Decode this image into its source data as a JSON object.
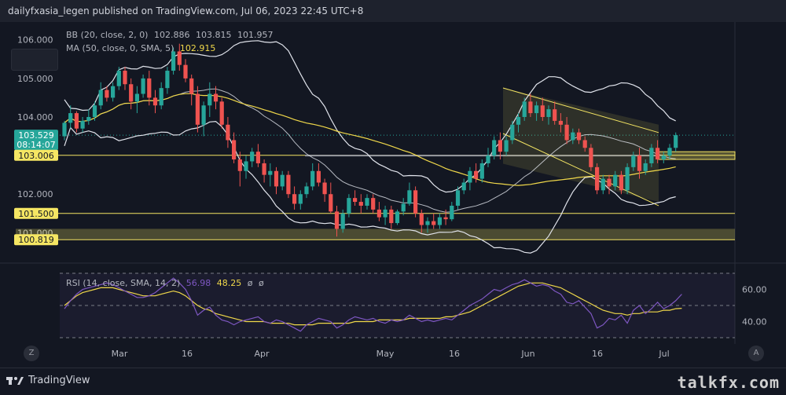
{
  "header": {
    "published_text": "dailyfxasia_legen published on TradingView.com, Jul 06, 2023 22:45 UTC+8"
  },
  "legend": {
    "bb_label": "BB (20, close, 2, 0)",
    "bb_values": [
      "102.886",
      "103.815",
      "101.957"
    ],
    "ma_label": "MA (50, close, 0, SMA, 5)",
    "ma_value": "102.915",
    "rsi_label": "RSI (14, close, SMA, 14, 2)",
    "rsi_values": [
      "56.98",
      "48.25",
      "ø",
      "ø"
    ]
  },
  "price_labels": {
    "current": "103.529",
    "countdown": "08:14:07",
    "level_103": "103.006",
    "level_1015": "101.500",
    "level_1008": "100.819"
  },
  "footer": {
    "brand": "TradingView",
    "watermark": "talkfx.com",
    "left_button": "Z",
    "right_button": "A"
  },
  "colors": {
    "up": "#26a69a",
    "down": "#ef5350",
    "bb": "#e0e3eb",
    "ma": "#f0d84a",
    "level": "#f5e663",
    "rsi": "#7e57c2",
    "rsi_ma": "#f0d84a"
  },
  "chart_data": [
    {
      "type": "candlestick",
      "title": "",
      "ylim": [
        100.6,
        106.3
      ],
      "y_ticks": [
        "106.000",
        "105.000",
        "104.000",
        "102.000",
        "101.000"
      ],
      "x_ticks": [
        "Mar",
        "16",
        "Apr",
        "May",
        "16",
        "Jun",
        "16",
        "Jul"
      ],
      "horizontal_levels": [
        103.006,
        101.5,
        100.819
      ],
      "highlight_zone": [
        100.819,
        101.1
      ],
      "candles": [
        [
          103.5,
          103.9,
          103.4,
          103.85
        ],
        [
          103.85,
          104.3,
          103.7,
          104.1
        ],
        [
          104.1,
          104.15,
          103.6,
          103.7
        ],
        [
          103.7,
          104.0,
          103.6,
          103.9
        ],
        [
          103.9,
          104.2,
          103.8,
          104.0
        ],
        [
          104.0,
          104.4,
          103.9,
          104.3
        ],
        [
          104.3,
          104.9,
          104.2,
          104.7
        ],
        [
          104.7,
          104.8,
          104.4,
          104.5
        ],
        [
          104.5,
          104.9,
          104.4,
          104.8
        ],
        [
          104.8,
          105.3,
          104.7,
          105.2
        ],
        [
          105.2,
          105.3,
          104.7,
          104.85
        ],
        [
          104.85,
          105.0,
          104.2,
          104.4
        ],
        [
          104.4,
          104.8,
          104.1,
          104.6
        ],
        [
          104.6,
          105.1,
          104.5,
          105.0
        ],
        [
          105.0,
          105.2,
          104.3,
          104.5
        ],
        [
          104.5,
          104.7,
          104.1,
          104.3
        ],
        [
          104.3,
          104.9,
          104.2,
          104.75
        ],
        [
          104.75,
          105.3,
          104.6,
          105.2
        ],
        [
          105.2,
          105.8,
          105.1,
          105.7
        ],
        [
          105.7,
          105.9,
          105.2,
          105.35
        ],
        [
          105.35,
          105.5,
          104.9,
          105.0
        ],
        [
          105.0,
          105.1,
          104.3,
          104.6
        ],
        [
          104.6,
          104.8,
          103.6,
          103.8
        ],
        [
          103.8,
          104.4,
          103.5,
          104.3
        ],
        [
          104.3,
          104.9,
          104.0,
          104.6
        ],
        [
          104.6,
          104.8,
          104.2,
          104.4
        ],
        [
          104.4,
          104.5,
          103.7,
          103.8
        ],
        [
          103.8,
          104.0,
          103.2,
          103.4
        ],
        [
          103.4,
          103.6,
          102.8,
          102.9
        ],
        [
          102.9,
          103.1,
          102.2,
          102.6
        ],
        [
          102.6,
          103.0,
          102.4,
          102.85
        ],
        [
          102.85,
          103.2,
          102.7,
          103.1
        ],
        [
          103.1,
          103.3,
          102.7,
          102.8
        ],
        [
          102.8,
          102.9,
          102.3,
          102.5
        ],
        [
          102.5,
          102.8,
          102.2,
          102.6
        ],
        [
          102.6,
          102.7,
          102.0,
          102.2
        ],
        [
          102.2,
          102.6,
          102.1,
          102.5
        ],
        [
          102.5,
          102.6,
          101.9,
          102.0
        ],
        [
          102.0,
          102.2,
          101.6,
          101.75
        ],
        [
          101.75,
          102.1,
          101.6,
          102.0
        ],
        [
          102.0,
          102.3,
          101.9,
          102.2
        ],
        [
          102.2,
          102.8,
          102.1,
          102.6
        ],
        [
          102.6,
          102.8,
          102.2,
          102.3
        ],
        [
          102.3,
          102.4,
          101.8,
          102.0
        ],
        [
          102.0,
          102.3,
          101.5,
          101.55
        ],
        [
          101.55,
          101.7,
          100.9,
          101.1
        ],
        [
          101.1,
          101.6,
          101.0,
          101.5
        ],
        [
          101.5,
          102.0,
          101.4,
          101.9
        ],
        [
          101.9,
          102.1,
          101.7,
          101.8
        ],
        [
          101.8,
          102.0,
          101.5,
          101.7
        ],
        [
          101.7,
          102.0,
          101.6,
          101.9
        ],
        [
          101.9,
          102.0,
          101.5,
          101.6
        ],
        [
          101.6,
          101.8,
          101.3,
          101.4
        ],
        [
          101.4,
          101.7,
          101.2,
          101.6
        ],
        [
          101.6,
          101.7,
          101.1,
          101.25
        ],
        [
          101.25,
          101.6,
          101.2,
          101.55
        ],
        [
          101.55,
          101.9,
          101.45,
          101.75
        ],
        [
          101.75,
          102.3,
          101.7,
          102.1
        ],
        [
          102.1,
          102.2,
          101.4,
          101.5
        ],
        [
          101.5,
          101.6,
          101.0,
          101.2
        ],
        [
          101.2,
          101.4,
          101.0,
          101.3
        ],
        [
          101.3,
          101.5,
          101.1,
          101.2
        ],
        [
          101.2,
          101.5,
          101.1,
          101.4
        ],
        [
          101.4,
          101.6,
          101.2,
          101.35
        ],
        [
          101.35,
          101.8,
          101.3,
          101.7
        ],
        [
          101.7,
          102.2,
          101.6,
          102.1
        ],
        [
          102.1,
          102.4,
          102.0,
          102.3
        ],
        [
          102.3,
          102.7,
          102.1,
          102.6
        ],
        [
          102.6,
          102.8,
          102.3,
          102.4
        ],
        [
          102.4,
          102.9,
          102.3,
          102.8
        ],
        [
          102.8,
          103.2,
          102.7,
          103.0
        ],
        [
          103.0,
          103.5,
          102.9,
          103.4
        ],
        [
          103.4,
          103.6,
          102.9,
          103.1
        ],
        [
          103.1,
          103.5,
          103.0,
          103.4
        ],
        [
          103.4,
          103.9,
          103.3,
          103.8
        ],
        [
          103.8,
          104.1,
          103.6,
          104.0
        ],
        [
          104.0,
          104.5,
          103.9,
          104.4
        ],
        [
          104.4,
          104.6,
          104.0,
          104.1
        ],
        [
          104.1,
          104.4,
          103.9,
          104.3
        ],
        [
          104.3,
          104.5,
          103.9,
          104.0
        ],
        [
          104.0,
          104.3,
          103.8,
          104.2
        ],
        [
          104.2,
          104.4,
          103.8,
          103.9
        ],
        [
          103.9,
          104.1,
          103.6,
          103.8
        ],
        [
          103.8,
          104.0,
          103.3,
          103.4
        ],
        [
          103.4,
          103.7,
          103.3,
          103.6
        ],
        [
          103.6,
          103.7,
          103.3,
          103.4
        ],
        [
          103.4,
          103.5,
          103.1,
          103.2
        ],
        [
          103.2,
          103.3,
          102.6,
          102.7
        ],
        [
          102.7,
          102.8,
          102.0,
          102.1
        ],
        [
          102.1,
          102.5,
          102.0,
          102.4
        ],
        [
          102.4,
          102.5,
          102.0,
          102.2
        ],
        [
          102.2,
          102.6,
          102.1,
          102.5
        ],
        [
          102.5,
          102.6,
          102.0,
          102.1
        ],
        [
          102.1,
          102.8,
          102.0,
          102.7
        ],
        [
          102.7,
          103.1,
          102.6,
          103.0
        ],
        [
          103.0,
          103.2,
          102.4,
          102.6
        ],
        [
          102.6,
          102.9,
          102.5,
          102.8
        ],
        [
          102.8,
          103.3,
          102.7,
          103.2
        ],
        [
          103.2,
          103.4,
          102.8,
          102.9
        ],
        [
          102.9,
          103.1,
          102.8,
          103.0
        ],
        [
          103.0,
          103.3,
          102.9,
          103.2
        ],
        [
          103.2,
          103.6,
          103.1,
          103.529
        ]
      ]
    },
    {
      "type": "line",
      "title": "",
      "ylim": [
        30,
        70
      ],
      "y_ticks": [
        "60.00",
        "40.00"
      ],
      "guide_levels": [
        70,
        50,
        30
      ],
      "series": [
        {
          "name": "",
          "values": [
            48,
            53,
            57,
            60,
            61,
            62,
            63,
            64,
            63,
            61,
            59,
            57,
            55,
            55,
            56,
            58,
            61,
            64,
            67,
            64,
            60,
            53,
            44,
            47,
            49,
            44,
            41,
            40,
            38,
            40,
            41,
            42,
            43,
            40,
            39,
            41,
            40,
            38,
            36,
            34,
            38,
            40,
            42,
            41,
            40,
            36,
            38,
            41,
            43,
            42,
            41,
            42,
            40,
            39,
            41,
            40,
            41,
            44,
            42,
            40,
            41,
            40,
            41,
            42,
            41,
            44,
            47,
            50,
            52,
            54,
            57,
            60,
            59,
            61,
            63,
            64,
            66,
            64,
            62,
            63,
            62,
            59,
            57,
            52,
            51,
            53,
            49,
            45,
            36,
            38,
            42,
            41,
            44,
            39,
            47,
            50,
            45,
            48,
            52,
            48,
            50,
            53,
            57
          ]
        },
        {
          "name": "",
          "values": [
            50,
            53,
            56,
            58,
            59,
            60,
            61,
            61,
            61,
            60,
            59,
            58,
            57,
            56,
            56,
            56,
            57,
            58,
            59,
            58,
            56,
            53,
            50,
            48,
            47,
            45,
            44,
            43,
            42,
            41,
            40,
            40,
            40,
            40,
            39,
            39,
            39,
            39,
            38,
            38,
            38,
            38,
            39,
            39,
            39,
            39,
            39,
            39,
            40,
            40,
            40,
            40,
            41,
            41,
            41,
            41,
            41,
            42,
            42,
            42,
            42,
            42,
            42,
            43,
            43,
            44,
            45,
            46,
            48,
            50,
            52,
            54,
            56,
            58,
            60,
            62,
            63,
            64,
            64,
            64,
            63,
            62,
            61,
            59,
            57,
            55,
            53,
            51,
            49,
            47,
            46,
            45,
            45,
            44,
            45,
            45,
            46,
            46,
            46,
            47,
            47,
            48,
            48.25
          ]
        }
      ]
    }
  ]
}
